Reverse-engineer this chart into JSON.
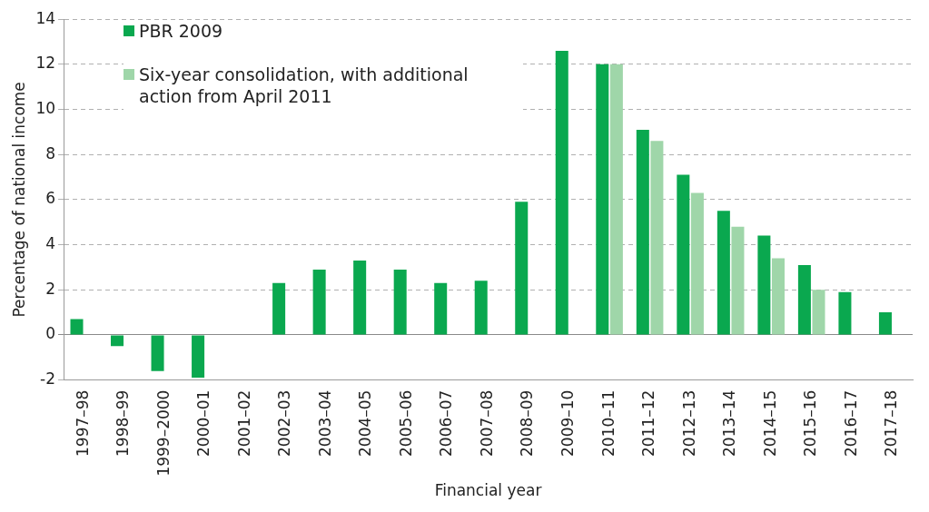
{
  "chart_data": {
    "type": "bar",
    "xlabel": "Financial year",
    "ylabel": "Percentage of national income",
    "categories": [
      "1997–98",
      "1998–99",
      "1999–2000",
      "2000–01",
      "2001–02",
      "2002–03",
      "2003–04",
      "2004–05",
      "2005–06",
      "2006–07",
      "2007–08",
      "2008–09",
      "2009–10",
      "2010–11",
      "2011–12",
      "2012–13",
      "2013–14",
      "2014–15",
      "2015–16",
      "2016–17",
      "2017–18"
    ],
    "series": [
      {
        "name": "PBR 2009",
        "color": "#0aa84f",
        "values": [
          0.7,
          -0.5,
          -1.6,
          -1.9,
          0,
          2.3,
          2.9,
          3.3,
          2.9,
          2.3,
          2.4,
          5.9,
          12.6,
          12.0,
          9.1,
          7.1,
          5.5,
          4.4,
          3.1,
          1.9,
          1.0
        ]
      },
      {
        "name": "Six-year consolidation, with additional action from April 2011",
        "color": "#9fd6a9",
        "values": [
          null,
          null,
          null,
          null,
          null,
          null,
          null,
          null,
          null,
          null,
          null,
          null,
          null,
          12.0,
          8.6,
          6.3,
          4.8,
          3.4,
          2.0,
          null,
          null
        ]
      }
    ],
    "ylim": [
      -2,
      14
    ],
    "yticks": [
      -2,
      0,
      2,
      4,
      6,
      8,
      10,
      12,
      14
    ],
    "grid": "y",
    "legend": "top left"
  }
}
